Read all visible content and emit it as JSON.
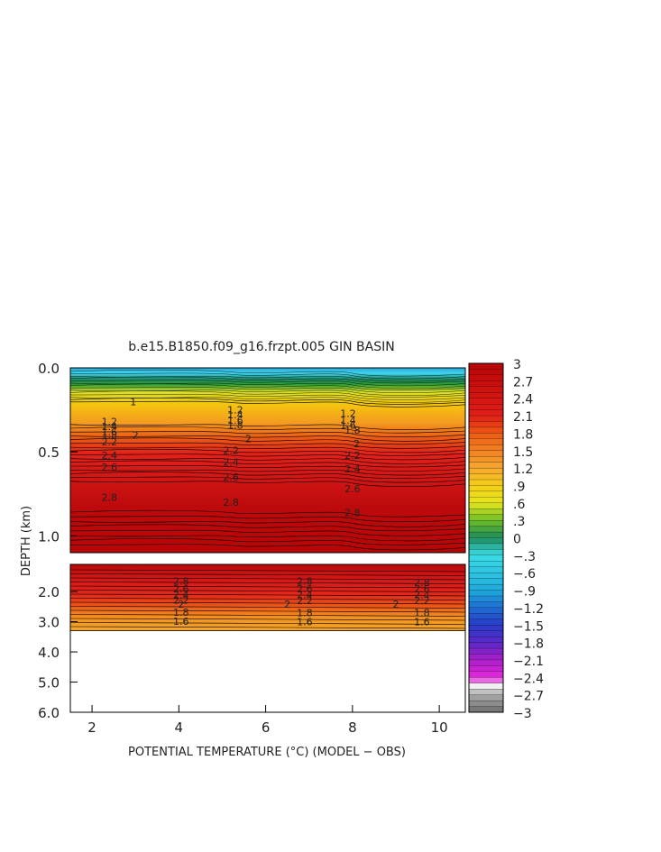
{
  "chart_data": {
    "type": "heatmap",
    "title": "b.e15.B1850.f09_g16.frzpt.005 GIN BASIN",
    "xlabel": "POTENTIAL TEMPERATURE (°C) (MODEL − OBS)",
    "ylabel": "DEPTH (km)",
    "x_range": [
      1.5,
      10.6
    ],
    "x_ticks": [
      "2",
      "4",
      "6",
      "8",
      "10"
    ],
    "upper_panel": {
      "depth_range_km": [
        0.0,
        1.1
      ],
      "y_ticks": [
        "0.0",
        "0.5",
        "1.0"
      ]
    },
    "lower_panel": {
      "depth_range_km": [
        1.1,
        6.0
      ],
      "y_ticks": [
        "2.0",
        "3.0",
        "4.0",
        "5.0",
        "6.0"
      ],
      "data_bottom_km": 3.3
    },
    "colorbar": {
      "labels": [
        "3",
        "2.7",
        "2.4",
        "2.1",
        "1.8",
        "1.5",
        "1.2",
        ".9",
        ".6",
        ".3",
        "0",
        "−.3",
        "−.6",
        "−.9",
        "−1.2",
        "−1.5",
        "−1.8",
        "−2.1",
        "−2.4",
        "−2.7",
        "−3"
      ],
      "min": -3,
      "max": 3
    },
    "contour_labels_upper": [
      {
        "text": "1",
        "x": 2.95,
        "depth": 0.2
      },
      {
        "text": "1.2",
        "x": 2.4,
        "depth": 0.32
      },
      {
        "text": "1.4",
        "x": 2.4,
        "depth": 0.35
      },
      {
        "text": "1.6",
        "x": 2.4,
        "depth": 0.38
      },
      {
        "text": "1.8",
        "x": 2.4,
        "depth": 0.4
      },
      {
        "text": "2",
        "x": 3.0,
        "depth": 0.4
      },
      {
        "text": "2.2",
        "x": 2.4,
        "depth": 0.44
      },
      {
        "text": "2.4",
        "x": 2.4,
        "depth": 0.52
      },
      {
        "text": "2.6",
        "x": 2.4,
        "depth": 0.59
      },
      {
        "text": "2.8",
        "x": 2.4,
        "depth": 0.77
      },
      {
        "text": "1.2",
        "x": 5.3,
        "depth": 0.25
      },
      {
        "text": "1.4",
        "x": 5.3,
        "depth": 0.28
      },
      {
        "text": "1.6",
        "x": 5.3,
        "depth": 0.31
      },
      {
        "text": "1.8",
        "x": 5.3,
        "depth": 0.34
      },
      {
        "text": "2",
        "x": 5.6,
        "depth": 0.42
      },
      {
        "text": "2.2",
        "x": 5.2,
        "depth": 0.49
      },
      {
        "text": "2.4",
        "x": 5.2,
        "depth": 0.56
      },
      {
        "text": "2.6",
        "x": 5.2,
        "depth": 0.65
      },
      {
        "text": "2.8",
        "x": 5.2,
        "depth": 0.8
      },
      {
        "text": "1.2",
        "x": 7.9,
        "depth": 0.27
      },
      {
        "text": "1.4",
        "x": 7.9,
        "depth": 0.31
      },
      {
        "text": "1.6",
        "x": 7.9,
        "depth": 0.34
      },
      {
        "text": "1.8",
        "x": 8.0,
        "depth": 0.37
      },
      {
        "text": "2",
        "x": 8.1,
        "depth": 0.45
      },
      {
        "text": "2.2",
        "x": 8.0,
        "depth": 0.52
      },
      {
        "text": "2.4",
        "x": 8.0,
        "depth": 0.6
      },
      {
        "text": "2.6",
        "x": 8.0,
        "depth": 0.72
      },
      {
        "text": "2.8",
        "x": 8.0,
        "depth": 0.86
      }
    ],
    "contour_labels_lower": [
      {
        "text": "2.8",
        "x": 4.05,
        "depth": 1.65
      },
      {
        "text": "2.6",
        "x": 4.05,
        "depth": 1.9
      },
      {
        "text": "2.4",
        "x": 4.05,
        "depth": 2.1
      },
      {
        "text": "2.2",
        "x": 4.05,
        "depth": 2.28
      },
      {
        "text": "2",
        "x": 4.05,
        "depth": 2.42
      },
      {
        "text": "1.8",
        "x": 4.05,
        "depth": 2.68
      },
      {
        "text": "1.6",
        "x": 4.05,
        "depth": 2.98
      },
      {
        "text": "2.8",
        "x": 6.9,
        "depth": 1.65
      },
      {
        "text": "2.6",
        "x": 6.9,
        "depth": 1.9
      },
      {
        "text": "2.4",
        "x": 6.9,
        "depth": 2.1
      },
      {
        "text": "2.2",
        "x": 6.9,
        "depth": 2.3
      },
      {
        "text": "2",
        "x": 6.5,
        "depth": 2.42
      },
      {
        "text": "1.8",
        "x": 6.9,
        "depth": 2.7
      },
      {
        "text": "1.6",
        "x": 6.9,
        "depth": 3.0
      },
      {
        "text": "2.8",
        "x": 9.6,
        "depth": 1.7
      },
      {
        "text": "2.6",
        "x": 9.6,
        "depth": 1.9
      },
      {
        "text": "2.4",
        "x": 9.6,
        "depth": 2.1
      },
      {
        "text": "2.2",
        "x": 9.6,
        "depth": 2.3
      },
      {
        "text": "2",
        "x": 9.0,
        "depth": 2.42
      },
      {
        "text": "1.8",
        "x": 9.6,
        "depth": 2.7
      },
      {
        "text": "1.6",
        "x": 9.6,
        "depth": 3.0
      }
    ]
  }
}
